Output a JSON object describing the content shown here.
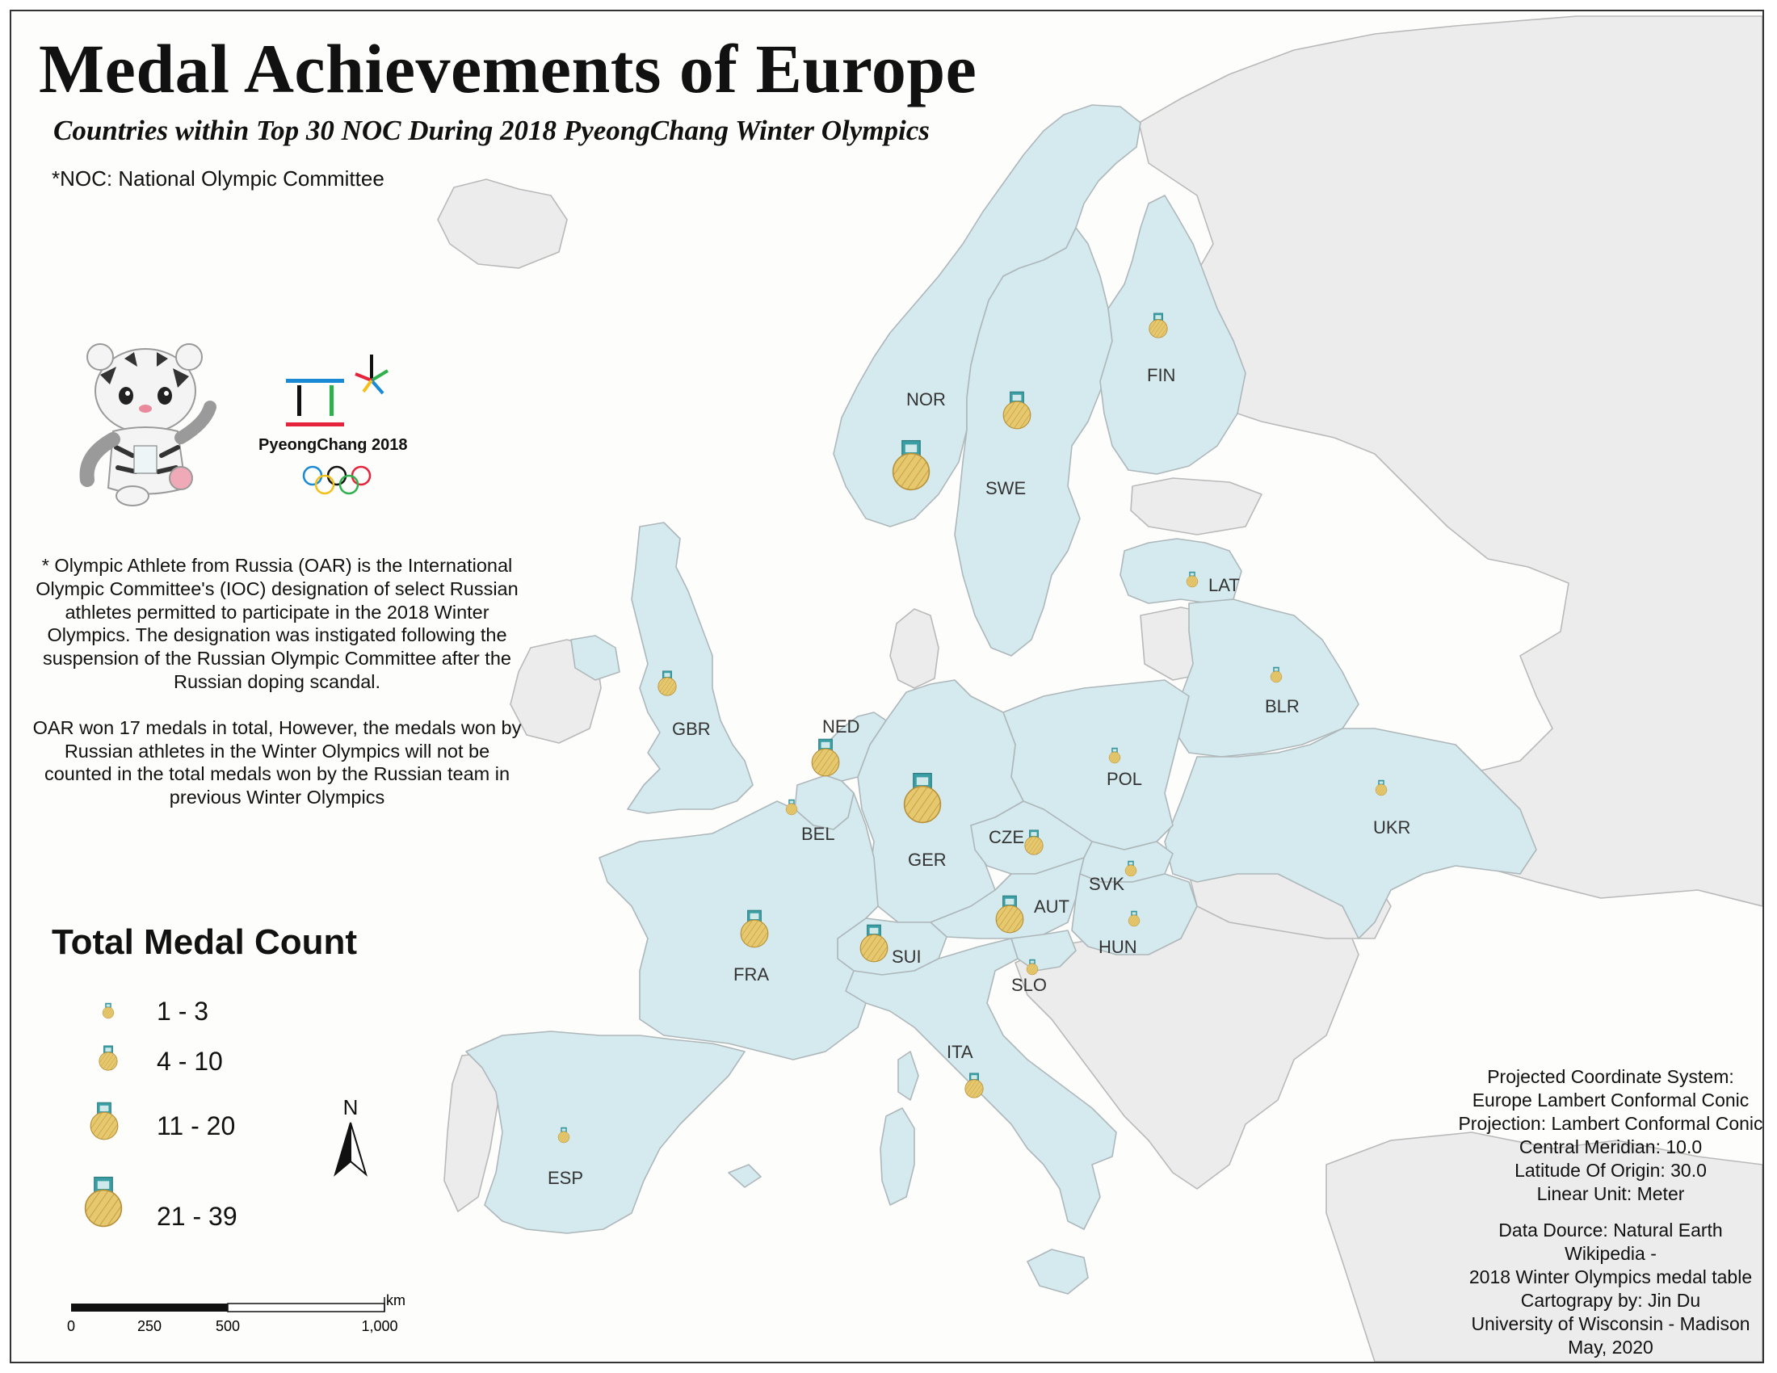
{
  "title": "Medal Achievements of Europe",
  "subtitle": "Countries within Top 30 NOC During 2018 PyeongChang Winter Olympics",
  "noc_note": "*NOC: National Olympic Committee",
  "logo_caption": "PyeongChang 2018",
  "oar_note": {
    "paragraph1": "* Olympic Athlete from Russia (OAR) is the International Olympic Committee's (IOC) designation of select Russian athletes permitted to participate in the 2018 Winter Olympics. The designation was instigated following the suspension of the Russian Olympic Committee after the Russian doping scandal.",
    "paragraph2": "OAR won 17 medals in total, However, the medals won by Russian athletes in the Winter Olympics will not be counted in the total medals won by the Russian team in previous Winter Olympics"
  },
  "legend": {
    "title": "Total Medal Count",
    "classes": [
      {
        "label": "1 - 3",
        "size_class": 1
      },
      {
        "label": "4 - 10",
        "size_class": 2
      },
      {
        "label": "11 - 20",
        "size_class": 3
      },
      {
        "label": "21 - 39",
        "size_class": 4
      }
    ]
  },
  "north_arrow": {
    "label": "N"
  },
  "scale_bar": {
    "unit": "km",
    "ticks": [
      "0",
      "250",
      "500",
      "1,000"
    ]
  },
  "countries": [
    {
      "code": "NOR",
      "medal_class": "21 - 39"
    },
    {
      "code": "GER",
      "medal_class": "21 - 39"
    },
    {
      "code": "SWE",
      "medal_class": "11 - 20"
    },
    {
      "code": "NED",
      "medal_class": "11 - 20"
    },
    {
      "code": "FRA",
      "medal_class": "11 - 20"
    },
    {
      "code": "SUI",
      "medal_class": "11 - 20"
    },
    {
      "code": "AUT",
      "medal_class": "11 - 20"
    },
    {
      "code": "ITA",
      "medal_class": "4 - 10"
    },
    {
      "code": "GBR",
      "medal_class": "4 - 10"
    },
    {
      "code": "FIN",
      "medal_class": "4 - 10"
    },
    {
      "code": "CZE",
      "medal_class": "4 - 10"
    },
    {
      "code": "BLR",
      "medal_class": "1 - 3"
    },
    {
      "code": "POL",
      "medal_class": "1 - 3"
    },
    {
      "code": "UKR",
      "medal_class": "1 - 3"
    },
    {
      "code": "LAT",
      "medal_class": "1 - 3"
    },
    {
      "code": "SVK",
      "medal_class": "1 - 3"
    },
    {
      "code": "HUN",
      "medal_class": "1 - 3"
    },
    {
      "code": "SLO",
      "medal_class": "1 - 3"
    },
    {
      "code": "ESP",
      "medal_class": "1 - 3"
    },
    {
      "code": "BEL",
      "medal_class": "1 - 3"
    }
  ],
  "info": {
    "projection": [
      "Projected Coordinate System:",
      "Europe Lambert Conformal Conic",
      "Projection: Lambert Conformal Conic",
      "Central Meridian: 10.0",
      "Latitude Of Origin: 30.0",
      "Linear Unit: Meter"
    ],
    "credits": [
      "Data Dource: Natural Earth",
      "Wikipedia -",
      "2018 Winter Olympics medal table",
      "Cartograpy by: Jin Du",
      "University of Wisconsin - Madison",
      "May, 2020"
    ]
  },
  "colors": {
    "highlight_fill": "#d4eaee",
    "other_fill": "#ececec",
    "border": "#b9b9b9",
    "medal_gold": "#e2c36a",
    "ribbon_teal": "#3a9fa4",
    "ocean": "#fdfdfc"
  }
}
